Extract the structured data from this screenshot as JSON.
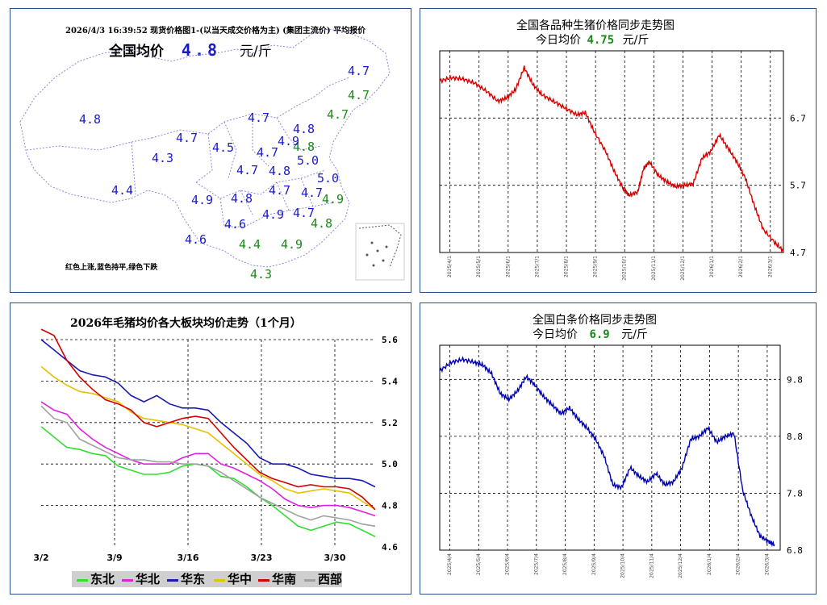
{
  "colors": {
    "panel_border": "#2b4f8e",
    "up": "#cc0000",
    "flat": "#1a1acc",
    "down": "#1a8a1a",
    "map_outline": "#8a8ae0",
    "red_line": "#d40000",
    "blue_line": "#0000b0"
  },
  "map_panel": {
    "header": "2026/4/3  16:39:52 现货价格图1-(以当天成交价格为主)  (集团主流价) 平均报价",
    "avg_label": "全国均价",
    "avg_value": "4.8",
    "unit": "元/斤",
    "note": "红色上涨,蓝色持平,绿色下跌",
    "region_prices": [
      {
        "value": "4.7",
        "trend": "flat"
      },
      {
        "value": "4.7",
        "trend": "down"
      },
      {
        "value": "4.7",
        "trend": "down"
      },
      {
        "value": "4.8",
        "trend": "flat"
      },
      {
        "value": "4.7",
        "trend": "flat"
      },
      {
        "value": "4.8",
        "trend": "down"
      },
      {
        "value": "4.7",
        "trend": "flat"
      },
      {
        "value": "4.9",
        "trend": "flat"
      },
      {
        "value": "4.5",
        "trend": "flat"
      },
      {
        "value": "4.7",
        "trend": "flat"
      },
      {
        "value": "5.0",
        "trend": "flat"
      },
      {
        "value": "4.3",
        "trend": "flat"
      },
      {
        "value": "4.7",
        "trend": "flat"
      },
      {
        "value": "4.8",
        "trend": "flat"
      },
      {
        "value": "5.0",
        "trend": "flat"
      },
      {
        "value": "4.4",
        "trend": "flat"
      },
      {
        "value": "4.7",
        "trend": "flat"
      },
      {
        "value": "4.8",
        "trend": "flat"
      },
      {
        "value": "4.7",
        "trend": "flat"
      },
      {
        "value": "4.9",
        "trend": "flat"
      },
      {
        "value": "4.9",
        "trend": "down"
      },
      {
        "value": "4.6",
        "trend": "flat"
      },
      {
        "value": "4.9",
        "trend": "flat"
      },
      {
        "value": "4.7",
        "trend": "flat"
      },
      {
        "value": "4.8",
        "trend": "down"
      },
      {
        "value": "4.6",
        "trend": "flat"
      },
      {
        "value": "4.4",
        "trend": "down"
      },
      {
        "value": "4.9",
        "trend": "down"
      },
      {
        "value": "4.3",
        "trend": "down"
      }
    ]
  },
  "hog_panel": {
    "title": "全国各品种生猪价格同步走势图",
    "avg_label": "今日均价",
    "avg_value": "4.75",
    "unit": "元/斤"
  },
  "board_panel": {
    "title": "2026年毛猪均价各大板块均价走势（1个月）"
  },
  "strip_panel": {
    "title": "全国白条价格同步走势图",
    "avg_label": "今日均价",
    "avg_value": "6.9",
    "unit": "元/斤"
  },
  "chart_data": [
    {
      "type": "line",
      "name": "hog_price_trend",
      "title": "全国各品种生猪价格同步走势图",
      "y_ticks": [
        4.7,
        5.7,
        6.7
      ],
      "ylim": [
        4.7,
        7.7
      ],
      "x_ticks": [
        "2025/4/1",
        "2025/5/1",
        "2025/6/1",
        "2025/7/1",
        "2025/8/1",
        "2025/9/1",
        "2025/10/1",
        "2025/11/1",
        "2025/12/1",
        "2026/1/1",
        "2026/2/1",
        "2026/3/1"
      ],
      "series": [
        {
          "name": "生猪均价",
          "color": "#d40000",
          "points": [
            [
              0,
              7.25
            ],
            [
              0.4,
              7.3
            ],
            [
              0.8,
              7.28
            ],
            [
              1.2,
              7.22
            ],
            [
              1.6,
              7.1
            ],
            [
              2.0,
              6.95
            ],
            [
              2.3,
              7.0
            ],
            [
              2.6,
              7.12
            ],
            [
              2.9,
              7.45
            ],
            [
              3.2,
              7.2
            ],
            [
              3.5,
              7.05
            ],
            [
              3.9,
              6.95
            ],
            [
              4.3,
              6.85
            ],
            [
              4.7,
              6.75
            ],
            [
              5.0,
              6.78
            ],
            [
              5.3,
              6.5
            ],
            [
              5.7,
              6.2
            ],
            [
              6.0,
              5.9
            ],
            [
              6.3,
              5.65
            ],
            [
              6.5,
              5.55
            ],
            [
              6.8,
              5.6
            ],
            [
              7.0,
              5.95
            ],
            [
              7.2,
              6.05
            ],
            [
              7.5,
              5.85
            ],
            [
              7.8,
              5.75
            ],
            [
              8.1,
              5.68
            ],
            [
              8.4,
              5.7
            ],
            [
              8.7,
              5.72
            ],
            [
              9.0,
              6.1
            ],
            [
              9.3,
              6.2
            ],
            [
              9.6,
              6.45
            ],
            [
              9.9,
              6.25
            ],
            [
              10.2,
              6.05
            ],
            [
              10.5,
              5.8
            ],
            [
              10.8,
              5.4
            ],
            [
              11.1,
              5.05
            ],
            [
              11.5,
              4.85
            ],
            [
              11.8,
              4.72
            ]
          ]
        }
      ]
    },
    {
      "type": "line",
      "name": "regional_board_trend",
      "title": "2026年毛猪均价各大板块均价走势（1个月）",
      "x_ticks": [
        "3/2",
        "3/9",
        "3/16",
        "3/23",
        "3/30"
      ],
      "y_ticks": [
        4.6,
        4.8,
        5.0,
        5.2,
        5.4,
        5.6
      ],
      "ylim": [
        4.6,
        5.6
      ],
      "series": [
        {
          "name": "东北",
          "color": "#33dd33",
          "values": [
            5.18,
            5.13,
            5.08,
            5.07,
            5.05,
            5.04,
            4.99,
            4.97,
            4.95,
            4.95,
            4.96,
            4.99,
            5.0,
            4.99,
            4.94,
            4.93,
            4.89,
            4.84,
            4.8,
            4.75,
            4.7,
            4.68,
            4.7,
            4.72,
            4.71,
            4.68,
            4.65
          ]
        },
        {
          "name": "华北",
          "color": "#e020e0",
          "values": [
            5.3,
            5.26,
            5.24,
            5.17,
            5.12,
            5.08,
            5.05,
            5.02,
            5.0,
            5.0,
            5.0,
            5.03,
            5.05,
            5.05,
            5.0,
            4.98,
            4.95,
            4.92,
            4.88,
            4.83,
            4.8,
            4.79,
            4.8,
            4.8,
            4.79,
            4.77,
            4.75
          ]
        },
        {
          "name": "华东",
          "color": "#1a1ab0",
          "values": [
            5.6,
            5.55,
            5.5,
            5.45,
            5.43,
            5.42,
            5.39,
            5.33,
            5.3,
            5.33,
            5.29,
            5.27,
            5.27,
            5.26,
            5.2,
            5.15,
            5.1,
            5.03,
            5.0,
            5.0,
            4.98,
            4.95,
            4.94,
            4.93,
            4.93,
            4.92,
            4.89
          ]
        },
        {
          "name": "华中",
          "color": "#e8c000",
          "values": [
            5.47,
            5.42,
            5.38,
            5.35,
            5.34,
            5.32,
            5.3,
            5.25,
            5.22,
            5.21,
            5.2,
            5.19,
            5.17,
            5.15,
            5.1,
            5.05,
            5.0,
            4.95,
            4.92,
            4.88,
            4.86,
            4.87,
            4.88,
            4.87,
            4.86,
            4.82,
            4.78
          ]
        },
        {
          "name": "华南",
          "color": "#d40000",
          "values": [
            5.65,
            5.62,
            5.5,
            5.42,
            5.36,
            5.31,
            5.29,
            5.26,
            5.2,
            5.18,
            5.2,
            5.22,
            5.23,
            5.22,
            5.15,
            5.08,
            5.02,
            4.96,
            4.93,
            4.91,
            4.89,
            4.9,
            4.89,
            4.89,
            4.88,
            4.84,
            4.78
          ]
        },
        {
          "name": "西部",
          "color": "#a0a0a0",
          "values": [
            5.28,
            5.22,
            5.2,
            5.12,
            5.09,
            5.06,
            5.03,
            5.02,
            5.02,
            5.01,
            5.01,
            5.0,
            5.0,
            4.99,
            4.96,
            4.92,
            4.88,
            4.84,
            4.81,
            4.78,
            4.75,
            4.73,
            4.75,
            4.74,
            4.73,
            4.71,
            4.7
          ]
        }
      ]
    },
    {
      "type": "line",
      "name": "white_strip_trend",
      "title": "全国白条价格同步走势图",
      "y_ticks": [
        6.8,
        7.8,
        8.8,
        9.8
      ],
      "ylim": [
        6.8,
        10.4
      ],
      "x_ticks": [
        "2025/4/4",
        "2025/5/4",
        "2025/6/4",
        "2025/7/4",
        "2025/8/4",
        "2025/9/4",
        "2025/10/4",
        "2025/11/4",
        "2025/12/4",
        "2026/1/4",
        "2026/2/4",
        "2026/3/4"
      ],
      "series": [
        {
          "name": "白条均价",
          "color": "#0000b0",
          "points": [
            [
              0,
              9.95
            ],
            [
              0.4,
              10.1
            ],
            [
              0.8,
              10.15
            ],
            [
              1.2,
              10.1
            ],
            [
              1.5,
              10.05
            ],
            [
              1.8,
              9.9
            ],
            [
              2.1,
              9.55
            ],
            [
              2.4,
              9.45
            ],
            [
              2.7,
              9.6
            ],
            [
              3.0,
              9.85
            ],
            [
              3.3,
              9.7
            ],
            [
              3.6,
              9.5
            ],
            [
              3.9,
              9.35
            ],
            [
              4.2,
              9.2
            ],
            [
              4.5,
              9.3
            ],
            [
              4.8,
              9.1
            ],
            [
              5.1,
              8.95
            ],
            [
              5.4,
              8.75
            ],
            [
              5.7,
              8.45
            ],
            [
              6.0,
              7.95
            ],
            [
              6.3,
              7.9
            ],
            [
              6.6,
              8.25
            ],
            [
              6.9,
              8.1
            ],
            [
              7.2,
              8.0
            ],
            [
              7.5,
              8.15
            ],
            [
              7.8,
              7.95
            ],
            [
              8.1,
              8.0
            ],
            [
              8.4,
              8.25
            ],
            [
              8.7,
              8.75
            ],
            [
              9.0,
              8.8
            ],
            [
              9.3,
              8.95
            ],
            [
              9.6,
              8.7
            ],
            [
              9.9,
              8.8
            ],
            [
              10.2,
              8.85
            ],
            [
              10.5,
              7.85
            ],
            [
              10.8,
              7.4
            ],
            [
              11.1,
              7.05
            ],
            [
              11.4,
              6.95
            ],
            [
              11.6,
              6.9
            ]
          ]
        }
      ]
    }
  ]
}
